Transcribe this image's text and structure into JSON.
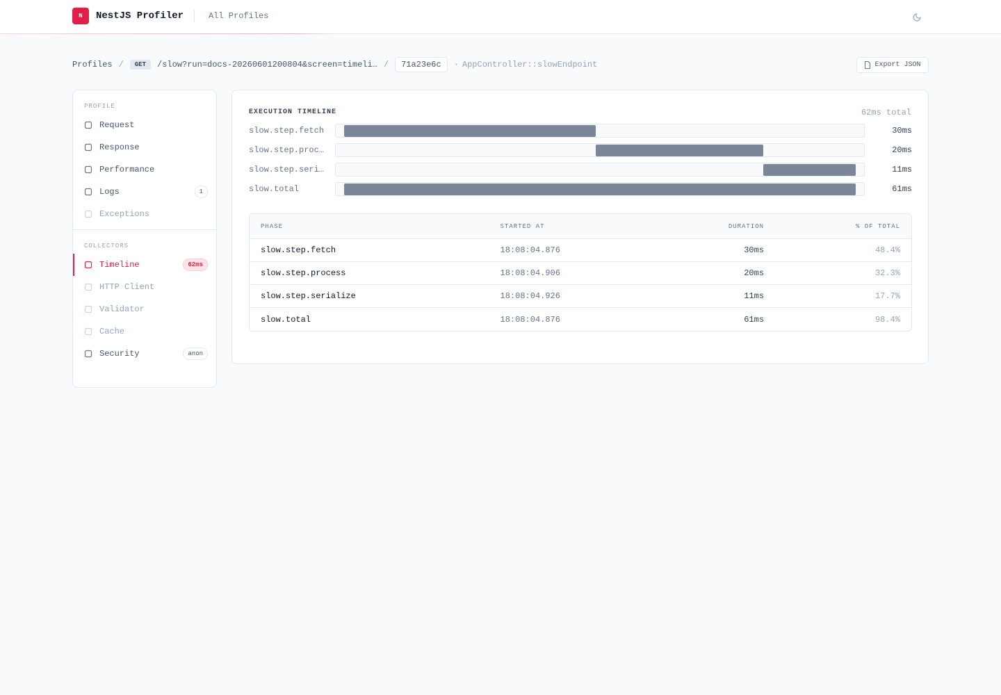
{
  "header": {
    "logo": "N",
    "title": "NestJS Profiler",
    "nav": "All Profiles"
  },
  "breadcrumb": {
    "root": "Profiles",
    "separator": "/",
    "method": "GET",
    "path": "/slow?run=docs-20260601200804&screen=timeli…",
    "token": "71a23e6c",
    "dot": "·",
    "controller": "AppController::slowEndpoint",
    "export": "Export JSON"
  },
  "sidebar": {
    "sections": [
      {
        "title": "PROFILE",
        "items": [
          {
            "label": "Request"
          },
          {
            "label": "Response"
          },
          {
            "label": "Performance"
          },
          {
            "label": "Logs",
            "badge": "1"
          },
          {
            "label": "Exceptions",
            "muted": true
          }
        ]
      },
      {
        "title": "COLLECTORS",
        "items": [
          {
            "label": "Timeline",
            "badge": "62ms",
            "active": true
          },
          {
            "label": "HTTP Client",
            "muted": true
          },
          {
            "label": "Validator",
            "muted": true
          },
          {
            "label": "Cache",
            "muted": true
          },
          {
            "label": "Security",
            "badge": "anon"
          }
        ]
      }
    ]
  },
  "timeline": {
    "title": "EXECUTION TIMELINE",
    "total": {
      "value": 62,
      "label": "62ms total"
    },
    "rows": [
      {
        "label": "slow.step.fetch",
        "duration": {
          "value": 30,
          "label": "30ms"
        }
      },
      {
        "label": "slow.step.proc…",
        "duration": {
          "value": 20,
          "label": "20ms"
        }
      },
      {
        "label": "slow.step.seri…",
        "duration": {
          "value": 11,
          "label": "11ms"
        }
      },
      {
        "label": "slow.total",
        "duration": {
          "value": 61,
          "label": "61ms"
        }
      }
    ]
  },
  "table": {
    "columns": [
      "PHASE",
      "STARTED AT",
      "DURATION",
      "% OF TOTAL"
    ],
    "rows": [
      [
        "slow.step.fetch",
        "18:08:04.876",
        "30ms",
        "48.4%"
      ],
      [
        "slow.step.process",
        "18:08:04.906",
        "20ms",
        "32.3%"
      ],
      [
        "slow.step.serialize",
        "18:08:04.926",
        "11ms",
        "17.7%"
      ],
      [
        "slow.total",
        "18:08:04.876",
        "61ms",
        "98.4%"
      ]
    ]
  }
}
